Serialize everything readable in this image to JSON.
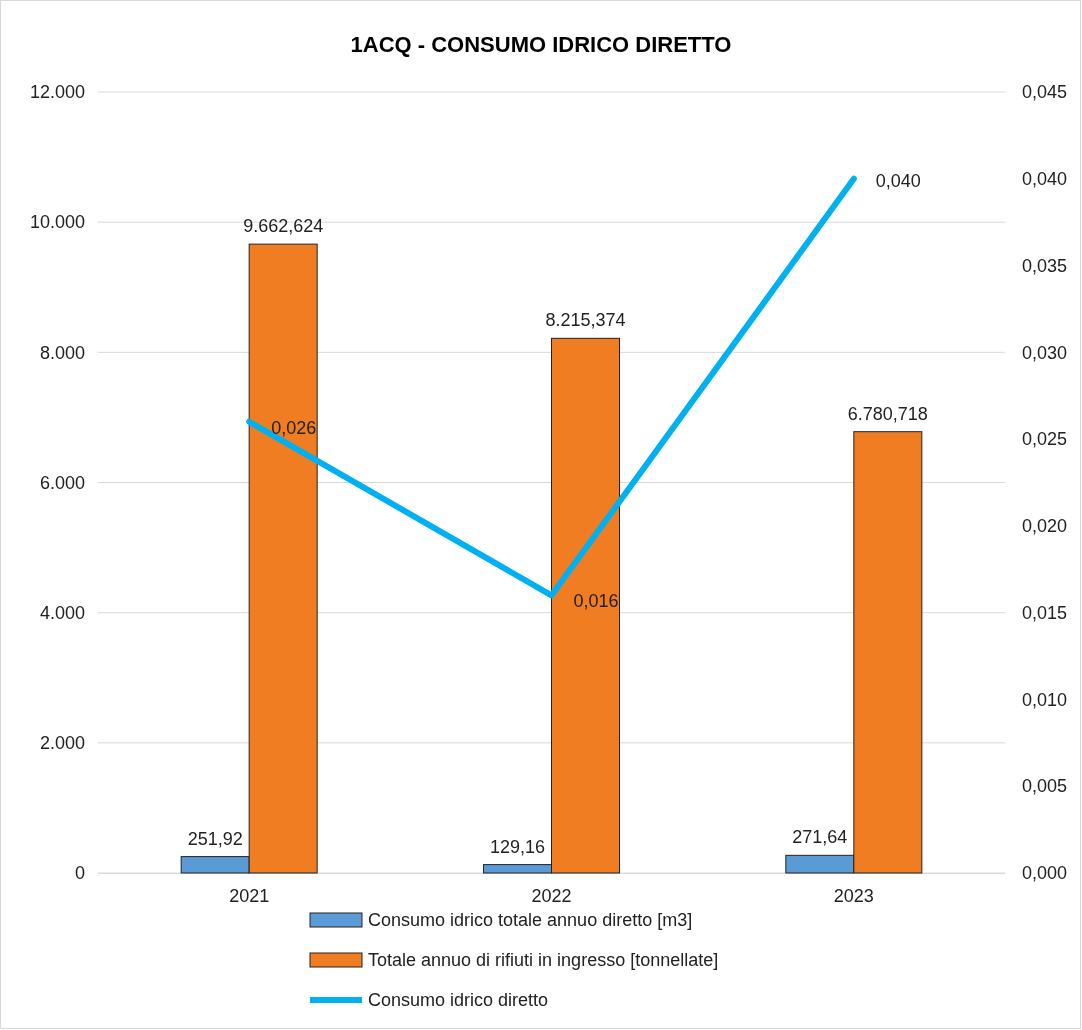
{
  "chart_data": {
    "type": "bar",
    "title": "1ACQ - CONSUMO IDRICO DIRETTO",
    "categories": [
      "2021",
      "2022",
      "2023"
    ],
    "series": [
      {
        "name": "Consumo idrico totale annuo diretto [m3]",
        "color": "#5b9bd5",
        "values": [
          251.92,
          129.16,
          271.64
        ],
        "value_labels": [
          "251,92",
          "129,16",
          "271,64"
        ]
      },
      {
        "name": "Totale annuo di rifiuti in ingresso [tonnellate]",
        "color": "#f07d22",
        "values": [
          9662.624,
          8215.374,
          6780.718
        ],
        "value_labels": [
          "9.662,624",
          "8.215,374",
          "6.780,718"
        ]
      },
      {
        "name": "Consumo idrico diretto",
        "type": "line",
        "axis": "y2",
        "color": "#00b0f0",
        "values": [
          0.026,
          0.016,
          0.04
        ],
        "value_labels": [
          "0,026",
          "0,016",
          "0,040"
        ]
      }
    ],
    "ylim": [
      0,
      12000
    ],
    "yticks": [
      {
        "value": 0,
        "label": "0"
      },
      {
        "value": 2000,
        "label": "2.000"
      },
      {
        "value": 4000,
        "label": "4.000"
      },
      {
        "value": 6000,
        "label": "6.000"
      },
      {
        "value": 8000,
        "label": "8.000"
      },
      {
        "value": 10000,
        "label": "10.000"
      },
      {
        "value": 12000,
        "label": "12.000"
      }
    ],
    "y2lim": [
      0,
      0.045
    ],
    "y2ticks": [
      {
        "value": 0,
        "label": "0,000"
      },
      {
        "value": 0.005,
        "label": "0,005"
      },
      {
        "value": 0.01,
        "label": "0,010"
      },
      {
        "value": 0.015,
        "label": "0,015"
      },
      {
        "value": 0.02,
        "label": "0,020"
      },
      {
        "value": 0.025,
        "label": "0,025"
      },
      {
        "value": 0.03,
        "label": "0,030"
      },
      {
        "value": 0.035,
        "label": "0,035"
      },
      {
        "value": 0.04,
        "label": "0,040"
      },
      {
        "value": 0.045,
        "label": "0,045"
      }
    ],
    "grid": "y",
    "legend": "bottom",
    "marker": "none",
    "line_style": "solid"
  }
}
